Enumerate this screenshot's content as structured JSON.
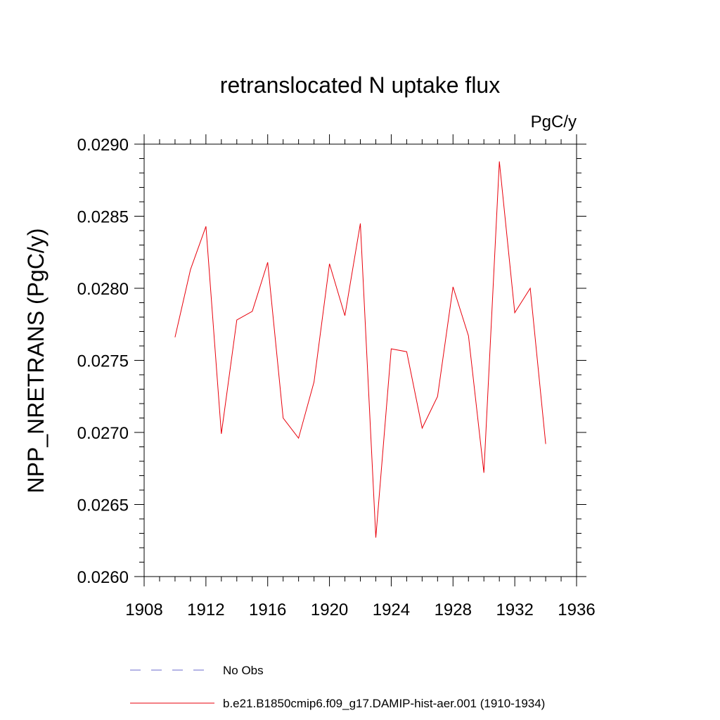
{
  "chart_data": {
    "type": "line",
    "title": "retranslocated N uptake flux",
    "units_label": "PgC/y",
    "ylabel": "NPP_NRETRANS  (PgC/y)",
    "xlabel": "",
    "xlim": [
      1908,
      1936
    ],
    "ylim": [
      0.026,
      0.029
    ],
    "xticks": [
      "1908",
      "1912",
      "1916",
      "1920",
      "1924",
      "1928",
      "1932",
      "1936"
    ],
    "yticks": [
      "0.0260",
      "0.0265",
      "0.0270",
      "0.0275",
      "0.0280",
      "0.0285",
      "0.0290"
    ],
    "grid": false,
    "legend_position": "bottom",
    "legend": [
      {
        "label": "No Obs",
        "color": "#6a6acd",
        "style": "dashed"
      },
      {
        "label": "b.e21.B1850cmip6.f09_g17.DAMIP-hist-aer.001 (1910-1934)",
        "color": "#e8000b",
        "style": "solid"
      }
    ],
    "series": [
      {
        "name": "b.e21.B1850cmip6.f09_g17.DAMIP-hist-aer.001 (1910-1934)",
        "color": "#e8000b",
        "x": [
          1910,
          1911,
          1912,
          1913,
          1914,
          1915,
          1916,
          1917,
          1918,
          1919,
          1920,
          1921,
          1922,
          1923,
          1924,
          1925,
          1926,
          1927,
          1928,
          1929,
          1930,
          1931,
          1932,
          1933,
          1934
        ],
        "values": [
          0.02766,
          0.02813,
          0.02843,
          0.02699,
          0.02778,
          0.02784,
          0.02818,
          0.0271,
          0.02696,
          0.02735,
          0.02817,
          0.02781,
          0.02845,
          0.02627,
          0.02758,
          0.02756,
          0.02703,
          0.02725,
          0.02801,
          0.02767,
          0.02672,
          0.02888,
          0.02783,
          0.028,
          0.02692
        ]
      }
    ]
  }
}
